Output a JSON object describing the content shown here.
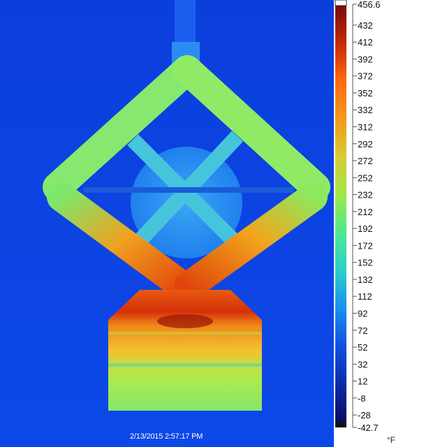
{
  "image": {
    "timestamp": "2/13/2015 2:57:17 PM"
  },
  "scale": {
    "max_label": "456.6",
    "min_label": "-42.7",
    "max": 456.6,
    "min": -42.7,
    "ticks": [
      "432",
      "412",
      "392",
      "372",
      "352",
      "332",
      "312",
      "292",
      "272",
      "252",
      "232",
      "212",
      "192",
      "172",
      "152",
      "132",
      "112",
      "92",
      "72",
      "52",
      "32",
      "12",
      "-8",
      "-28"
    ],
    "unit": "°F",
    "colormap": [
      "#ffffff",
      "#7a0a0a",
      "#c42a08",
      "#ff6a10",
      "#f39a18",
      "#d8cc30",
      "#9ee84a",
      "#4de890",
      "#2ad0c8",
      "#1a8ef0",
      "#1050e0",
      "#0c2aa8",
      "#080a60",
      "#111111"
    ]
  },
  "colors": {
    "background": "#0d45e6",
    "cool": "#1c7cf2",
    "warm": "#a6ee52",
    "hot": "#e8480a"
  }
}
